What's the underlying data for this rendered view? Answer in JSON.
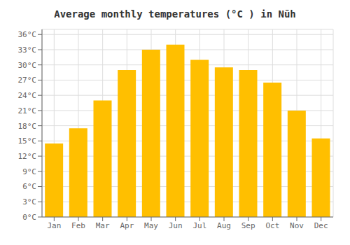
{
  "chart_data": {
    "type": "bar",
    "title": "Average monthly temperatures (°C ) in Nūh",
    "categories": [
      "Jan",
      "Feb",
      "Mar",
      "Apr",
      "May",
      "Jun",
      "Jul",
      "Aug",
      "Sep",
      "Oct",
      "Nov",
      "Dec"
    ],
    "values": [
      14.5,
      17.5,
      23.0,
      29.0,
      33.0,
      34.0,
      31.0,
      29.5,
      29.0,
      26.5,
      21.0,
      15.5
    ],
    "color": "#FFBF00",
    "ylim": [
      0,
      37
    ],
    "yticks": [
      {
        "value": 0,
        "label": "0°C"
      },
      {
        "value": 3,
        "label": "3°C"
      },
      {
        "value": 6,
        "label": "6°C"
      },
      {
        "value": 9,
        "label": "9°C"
      },
      {
        "value": 12,
        "label": "12°C"
      },
      {
        "value": 15,
        "label": "15°C"
      },
      {
        "value": 18,
        "label": "18°C"
      },
      {
        "value": 21,
        "label": "21°C"
      },
      {
        "value": 24,
        "label": "24°C"
      },
      {
        "value": 27,
        "label": "27°C"
      },
      {
        "value": 30,
        "label": "30°C"
      },
      {
        "value": 33,
        "label": "33°C"
      },
      {
        "value": 36,
        "label": "36°C"
      }
    ],
    "grid": true
  }
}
